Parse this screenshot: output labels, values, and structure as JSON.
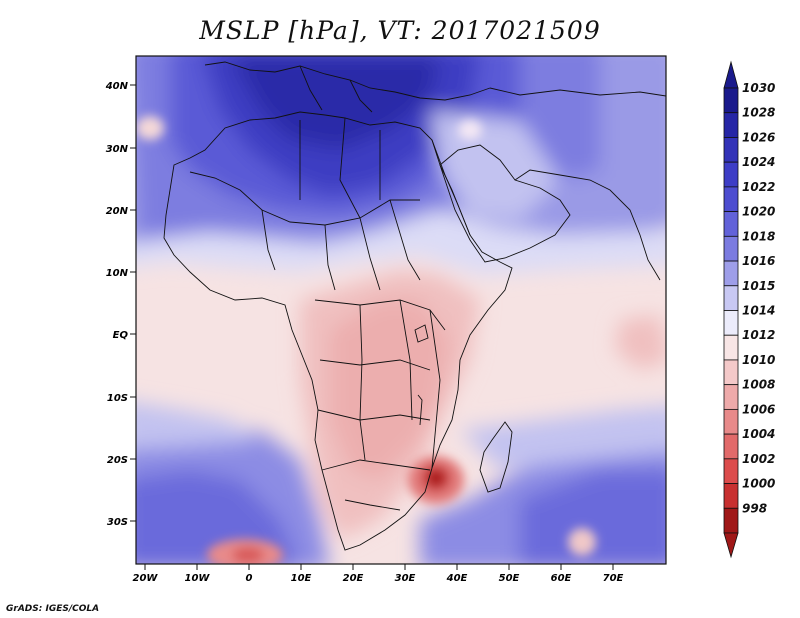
{
  "title": "MSLP [hPa], VT: 2017021509",
  "credit": "GrADS: IGES/COLA",
  "map": {
    "lat_labels": [
      "40N",
      "30N",
      "20N",
      "10N",
      "EQ",
      "10S",
      "20S",
      "30S"
    ],
    "lon_labels": [
      "20W",
      "10W",
      "0",
      "10E",
      "20E",
      "30E",
      "40E",
      "50E",
      "60E",
      "70E"
    ]
  },
  "colorbar": {
    "labels": [
      "1030",
      "1028",
      "1026",
      "1024",
      "1022",
      "1020",
      "1018",
      "1016",
      "1015",
      "1014",
      "1012",
      "1010",
      "1008",
      "1006",
      "1004",
      "1002",
      "1000",
      "998"
    ],
    "colors": [
      "#1a1a8c",
      "#2626a6",
      "#3333b8",
      "#3d3dc6",
      "#4d4dd0",
      "#6262d9",
      "#7b7be0",
      "#9e9ee9",
      "#c8c8f3",
      "#ececfb",
      "#f8e6e6",
      "#f4c9c9",
      "#eeaaaa",
      "#e88a8a",
      "#e26a6a",
      "#dc4c4c",
      "#c83030",
      "#a01818"
    ]
  }
}
